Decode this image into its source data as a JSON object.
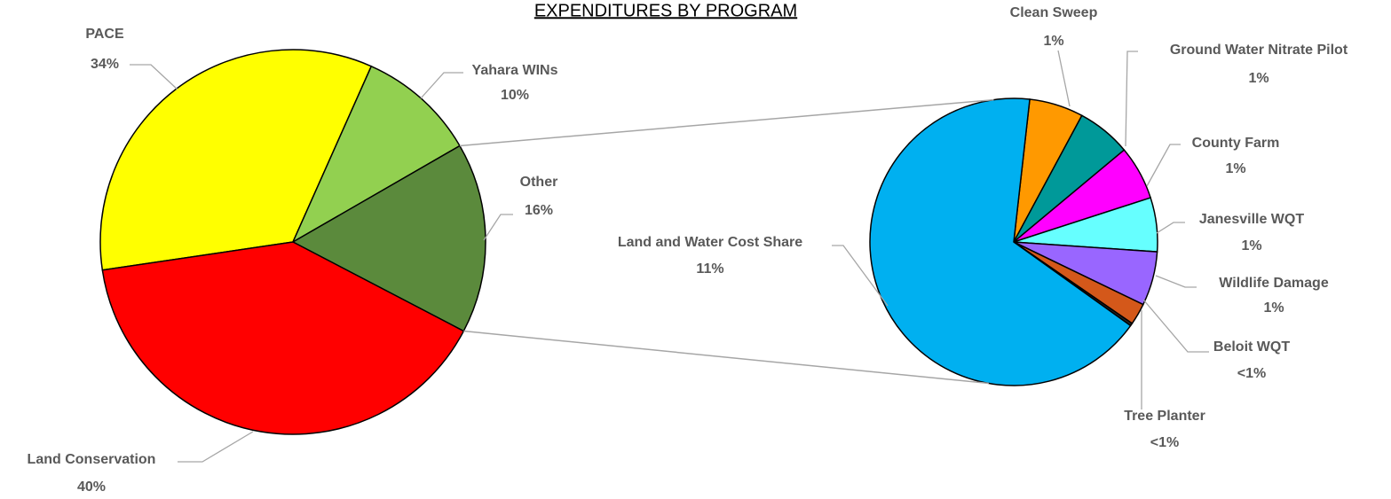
{
  "chart_data": [
    {
      "type": "pie",
      "title": "EXPENDITURES BY PROGRAM",
      "categories": [
        "PACE",
        "Yahara WINs",
        "Other",
        "Land Conservation"
      ],
      "values": [
        34,
        10,
        16,
        40
      ],
      "value_labels": [
        "34%",
        "10%",
        "16%",
        "40%"
      ],
      "colors": [
        "#ffff00",
        "#92d050",
        "#5b8a3c",
        "#ff0000"
      ]
    },
    {
      "type": "pie",
      "categories": [
        "Clean Sweep",
        "Ground Water Nitrate Pilot",
        "County Farm",
        "Janesville WQT",
        "Wildlife Damage",
        "Beloit WQT",
        "Tree Planter",
        "Land and Water Cost Share"
      ],
      "values": [
        1,
        1,
        1,
        1,
        1,
        0.4,
        0.05,
        11
      ],
      "value_labels": [
        "1%",
        "1%",
        "1%",
        "1%",
        "1%",
        "<1%",
        "<1%",
        "11%"
      ],
      "colors": [
        "#ff9900",
        "#009999",
        "#ff00ff",
        "#66ffff",
        "#9966ff",
        "#d4581a",
        "#262626",
        "#00b0f0"
      ]
    }
  ]
}
